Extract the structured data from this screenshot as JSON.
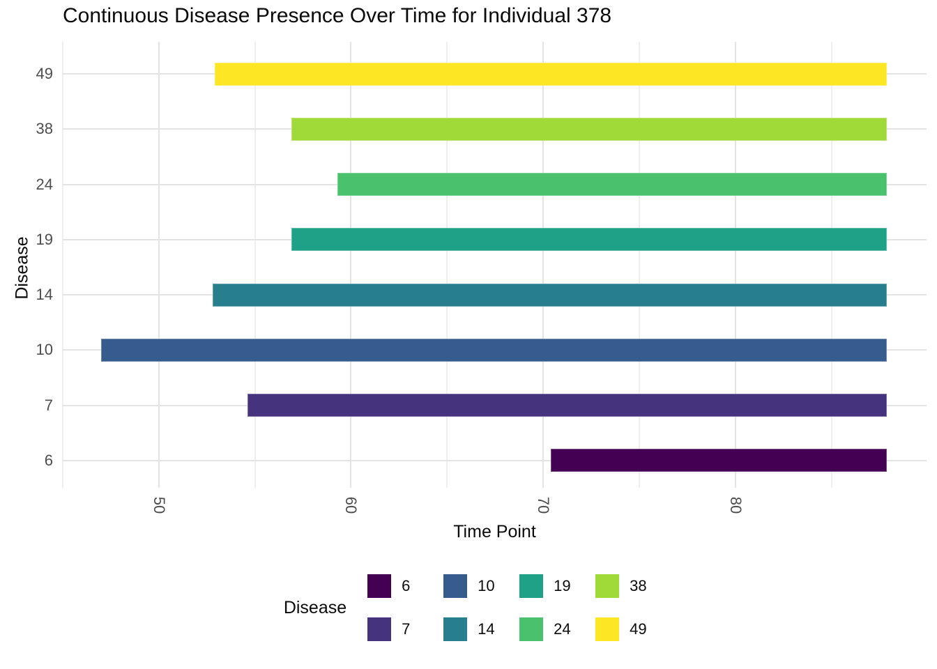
{
  "title": "Continuous Disease Presence Over Time for Individual 378",
  "x_axis": {
    "label": "Time Point",
    "major_ticks": [
      50,
      60,
      70,
      80
    ],
    "minor_ticks": [
      45,
      55,
      65,
      75,
      85
    ]
  },
  "y_axis": {
    "label": "Disease",
    "categories_top_to_bottom": [
      "49",
      "38",
      "24",
      "19",
      "14",
      "10",
      "7",
      "6"
    ]
  },
  "legend": {
    "title": "Disease",
    "rows": [
      [
        "6",
        "10",
        "19",
        "38"
      ],
      [
        "7",
        "14",
        "24",
        "49"
      ]
    ]
  },
  "colors": {
    "disease_6": "#440154",
    "disease_7": "#46337E",
    "disease_10": "#365C8D",
    "disease_14": "#277F8E",
    "disease_19": "#1FA187",
    "disease_24": "#4AC16D",
    "disease_38": "#A0DA39",
    "disease_49": "#FDE725",
    "grid_major": "#E3E3E3",
    "grid_minor": "#EFEFEF",
    "axis_text": "#4D4D4D",
    "title_text": "#0A0A0A",
    "background": "#FFFFFF"
  },
  "chart_data": {
    "type": "bar",
    "subtype": "horizontal-gantt",
    "title": "Continuous Disease Presence Over Time for Individual 378",
    "xlabel": "Time Point",
    "ylabel": "Disease",
    "xlim": [
      45,
      89.95
    ],
    "x_major_ticks": [
      50,
      60,
      70,
      80
    ],
    "x_minor_ticks": [
      45,
      55,
      65,
      75,
      85
    ],
    "grid": true,
    "legend_position": "bottom",
    "series": [
      {
        "disease": "49",
        "start": 52.9,
        "end": 87.9,
        "color": "#FDE725"
      },
      {
        "disease": "38",
        "start": 56.9,
        "end": 87.9,
        "color": "#A0DA39"
      },
      {
        "disease": "24",
        "start": 59.3,
        "end": 87.9,
        "color": "#4AC16D"
      },
      {
        "disease": "19",
        "start": 56.9,
        "end": 87.9,
        "color": "#1FA187"
      },
      {
        "disease": "14",
        "start": 52.8,
        "end": 87.9,
        "color": "#277F8E"
      },
      {
        "disease": "10",
        "start": 47.0,
        "end": 87.9,
        "color": "#365C8D"
      },
      {
        "disease": "7",
        "start": 54.6,
        "end": 87.9,
        "color": "#46337E"
      },
      {
        "disease": "6",
        "start": 70.4,
        "end": 87.9,
        "color": "#440154"
      }
    ]
  }
}
